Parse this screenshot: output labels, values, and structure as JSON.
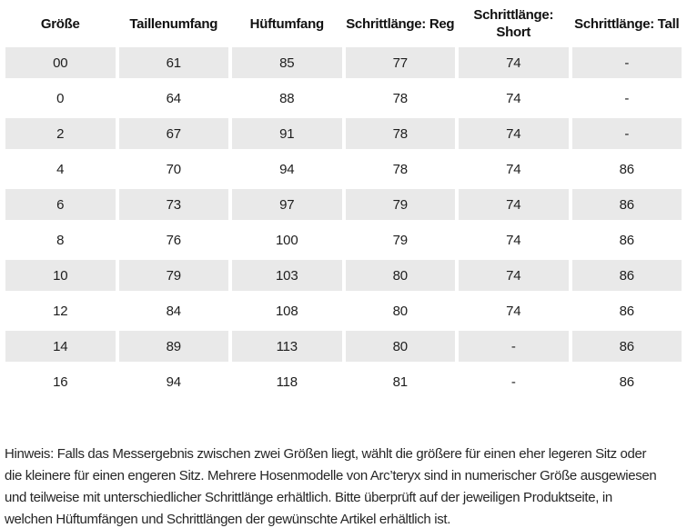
{
  "table": {
    "columns": [
      {
        "line1": "Größe",
        "line2": ""
      },
      {
        "line1": "Taillenumfang",
        "line2": ""
      },
      {
        "line1": "Hüftumfang",
        "line2": ""
      },
      {
        "line1": "Schrittlänge: Reg",
        "line2": ""
      },
      {
        "line1": "Schrittlänge:",
        "line2": "Short"
      },
      {
        "line1": "Schrittlänge: Tall",
        "line2": ""
      }
    ],
    "rows": [
      [
        "00",
        "61",
        "85",
        "77",
        "74",
        "-"
      ],
      [
        "0",
        "64",
        "88",
        "78",
        "74",
        "-"
      ],
      [
        "2",
        "67",
        "91",
        "78",
        "74",
        "-"
      ],
      [
        "4",
        "70",
        "94",
        "78",
        "74",
        "86"
      ],
      [
        "6",
        "73",
        "97",
        "79",
        "74",
        "86"
      ],
      [
        "8",
        "76",
        "100",
        "79",
        "74",
        "86"
      ],
      [
        "10",
        "79",
        "103",
        "80",
        "74",
        "86"
      ],
      [
        "12",
        "84",
        "108",
        "80",
        "74",
        "86"
      ],
      [
        "14",
        "89",
        "113",
        "80",
        "-",
        "86"
      ],
      [
        "16",
        "94",
        "118",
        "81",
        "-",
        "86"
      ]
    ]
  },
  "note": {
    "lines": [
      "Hinweis: Falls das Messergebnis zwischen zwei Größen liegt, wählt die größere für einen eher legeren Sitz oder",
      "die kleinere für einen engeren Sitz. Mehrere Hosenmodelle von Arc’teryx sind in numerischer Größe ausgewiesen",
      "und teilweise mit unterschiedlicher Schrittlänge erhältlich. Bitte überprüft auf der jeweiligen Produktseite, in",
      "welchen Hüftumfängen und Schrittlängen der gewünschte Artikel erhältlich ist."
    ]
  },
  "colors": {
    "row_stripe": "#e9e9e9",
    "header_text": "#111111",
    "body_text": "#262626",
    "background": "#ffffff"
  }
}
